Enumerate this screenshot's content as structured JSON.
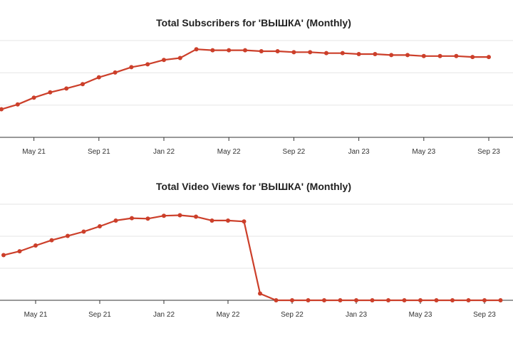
{
  "colors": {
    "series": "#cc3f2a",
    "grid": "#e6e6e6",
    "axis": "#333333",
    "text": "#222222"
  },
  "chart_data": [
    {
      "type": "line",
      "title": "Total Subscribers for 'ВЫШКА' (Monthly)",
      "xlabel": "",
      "ylabel": "",
      "x_start": "2021-03",
      "x_ticks": [
        "May 21",
        "Sep 21",
        "Jan 22",
        "May 22",
        "Sep 22",
        "Jan 23",
        "May 23",
        "Sep 23"
      ],
      "ylim": [
        0,
        100
      ],
      "y_gridlines": [
        0,
        33.3,
        66.7,
        100
      ],
      "grid": true,
      "legend": "none",
      "series": [
        {
          "values": [
            29,
            34,
            41,
            46.5,
            50.5,
            55,
            62,
            67,
            72.5,
            75.5,
            80,
            82,
            91,
            90,
            90,
            90,
            89,
            89,
            88,
            88,
            87,
            87,
            86,
            86,
            85,
            85,
            84,
            84,
            84,
            83,
            83
          ]
        }
      ]
    },
    {
      "type": "line",
      "title": "Total Video Views for 'ВЫШКА' (Monthly)",
      "xlabel": "",
      "ylabel": "",
      "x_start": "2021-03",
      "x_ticks": [
        "May 21",
        "Sep 21",
        "Jan 22",
        "May 22",
        "Sep 22",
        "Jan 23",
        "May 23",
        "Sep 23"
      ],
      "ylim": [
        0,
        100
      ],
      "y_gridlines": [
        0,
        33.3,
        66.7,
        100
      ],
      "grid": true,
      "legend": "none",
      "series": [
        {
          "values": [
            47,
            51,
            57,
            62.5,
            67,
            71.5,
            77,
            83,
            85.5,
            85,
            88,
            88.5,
            87,
            83,
            83,
            82,
            7,
            0,
            0,
            0,
            0,
            0,
            0,
            0,
            0,
            0,
            0,
            0,
            0,
            0,
            0,
            0
          ]
        }
      ]
    }
  ]
}
